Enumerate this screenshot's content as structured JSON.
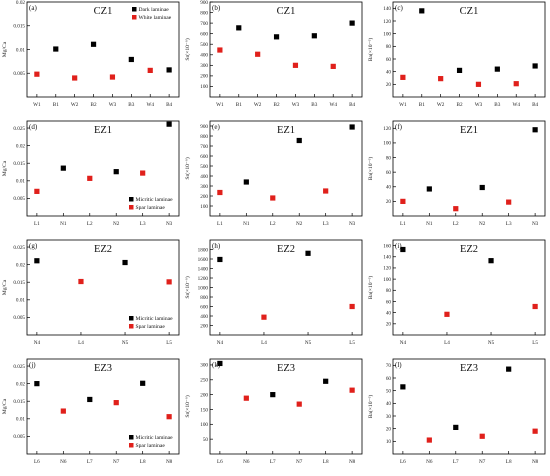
{
  "colors": {
    "black": "#000000",
    "red": "#e0201b",
    "axis": "#000000"
  },
  "legends": {
    "cz": [
      "Dark laminae",
      "White laminae"
    ],
    "ez": [
      "Micritic laminae",
      "Spar laminae"
    ]
  },
  "chart_data": [
    {
      "type": "scatter",
      "letter": "(a)",
      "title": "CZ1",
      "ylabel": "Mg/Ca",
      "categories": [
        "W1",
        "B1",
        "W2",
        "B2",
        "W3",
        "B3",
        "W4",
        "B4"
      ],
      "ylim": [
        0,
        0.02
      ],
      "yticks": [
        0.005,
        0.01,
        0.015,
        0.02
      ],
      "yticklabels": [
        "0.005",
        "0.01",
        "0.015",
        "0.02"
      ],
      "legend": "cz",
      "series": [
        {
          "name": "Dark laminae",
          "color": "black",
          "points": [
            [
              1,
              0.0101
            ],
            [
              3,
              0.0111
            ],
            [
              5,
              0.0079
            ],
            [
              7,
              0.0057
            ]
          ]
        },
        {
          "name": "White laminae",
          "color": "red",
          "points": [
            [
              0,
              0.0048
            ],
            [
              2,
              0.004
            ],
            [
              4,
              0.0042
            ],
            [
              6,
              0.0056
            ]
          ]
        }
      ]
    },
    {
      "type": "scatter",
      "letter": "(b)",
      "title": "CZ1",
      "ylabel": "Sr(×10⁻⁶)",
      "categories": [
        "W1",
        "B1",
        "W2",
        "B2",
        "W3",
        "B3",
        "W4",
        "B4"
      ],
      "ylim": [
        0,
        900
      ],
      "yticks": [
        100,
        200,
        300,
        400,
        500,
        600,
        700,
        800,
        900
      ],
      "yticklabels": [
        "100",
        "200",
        "300",
        "400",
        "500",
        "600",
        "700",
        "800",
        "900"
      ],
      "legend": null,
      "series": [
        {
          "name": "",
          "color": "black",
          "points": [
            [
              1,
              655
            ],
            [
              3,
              570
            ],
            [
              5,
              580
            ],
            [
              7,
              700
            ]
          ]
        },
        {
          "name": "",
          "color": "red",
          "points": [
            [
              0,
              445
            ],
            [
              2,
              405
            ],
            [
              4,
              300
            ],
            [
              6,
              290
            ]
          ]
        }
      ]
    },
    {
      "type": "scatter",
      "letter": "(c)",
      "title": "CZ1",
      "ylabel": "Ba(×10⁻⁶)",
      "categories": [
        "W1",
        "B1",
        "W2",
        "B2",
        "W3",
        "B3",
        "W4",
        "B4"
      ],
      "ylim": [
        0,
        150
      ],
      "yticks": [
        20,
        40,
        60,
        80,
        100,
        120,
        140
      ],
      "yticklabels": [
        "20",
        "40",
        "60",
        "80",
        "100",
        "120",
        "140"
      ],
      "legend": null,
      "series": [
        {
          "name": "",
          "color": "black",
          "points": [
            [
              1,
              136
            ],
            [
              3,
              42
            ],
            [
              5,
              44
            ],
            [
              7,
              49
            ]
          ]
        },
        {
          "name": "",
          "color": "red",
          "points": [
            [
              0,
              31
            ],
            [
              2,
              29
            ],
            [
              4,
              20
            ],
            [
              6,
              21
            ]
          ]
        }
      ]
    },
    {
      "type": "scatter",
      "letter": "(d)",
      "title": "EZ1",
      "ylabel": "Mg/Ca",
      "categories": [
        "L1",
        "N1",
        "L2",
        "N2",
        "L3",
        "N3"
      ],
      "ylim": [
        0,
        0.027
      ],
      "yticks": [
        0.005,
        0.01,
        0.015,
        0.02,
        0.025
      ],
      "yticklabels": [
        "0.005",
        "0.01",
        "0.015",
        "0.02",
        "0.025"
      ],
      "legend": "ez",
      "series": [
        {
          "name": "Micritic laminae",
          "color": "black",
          "points": [
            [
              1,
              0.0136
            ],
            [
              3,
              0.0126
            ],
            [
              5,
              0.0261
            ]
          ]
        },
        {
          "name": "Spar laminae",
          "color": "red",
          "points": [
            [
              0,
              0.007
            ],
            [
              2,
              0.0107
            ],
            [
              4,
              0.0122
            ]
          ]
        }
      ]
    },
    {
      "type": "scatter",
      "letter": "(e)",
      "title": "EZ1",
      "ylabel": "Sr(×10⁻⁶)",
      "categories": [
        "L1",
        "N1",
        "L2",
        "N2",
        "L3",
        "N3"
      ],
      "ylim": [
        0,
        950
      ],
      "yticks": [
        100,
        200,
        300,
        400,
        500,
        600,
        700,
        800,
        900
      ],
      "yticklabels": [
        "100",
        "200",
        "300",
        "400",
        "500",
        "600",
        "700",
        "800",
        "900"
      ],
      "legend": null,
      "series": [
        {
          "name": "",
          "color": "black",
          "points": [
            [
              1,
              340
            ],
            [
              3,
              755
            ],
            [
              5,
              890
            ]
          ]
        },
        {
          "name": "",
          "color": "red",
          "points": [
            [
              0,
              235
            ],
            [
              2,
              180
            ],
            [
              4,
              250
            ]
          ]
        }
      ]
    },
    {
      "type": "scatter",
      "letter": "(f)",
      "title": "EZ1",
      "ylabel": "Ba(×10⁻⁶)",
      "categories": [
        "L1",
        "N1",
        "L2",
        "N2",
        "L3",
        "N3"
      ],
      "ylim": [
        0,
        130
      ],
      "yticks": [
        20,
        40,
        60,
        80,
        100,
        120
      ],
      "yticklabels": [
        "20",
        "40",
        "60",
        "80",
        "100",
        "120"
      ],
      "legend": null,
      "series": [
        {
          "name": "",
          "color": "black",
          "points": [
            [
              1,
              37
            ],
            [
              3,
              39
            ],
            [
              5,
              118
            ]
          ]
        },
        {
          "name": "",
          "color": "red",
          "points": [
            [
              0,
              20
            ],
            [
              2,
              10
            ],
            [
              4,
              19
            ]
          ]
        }
      ]
    },
    {
      "type": "scatter",
      "letter": "(g)",
      "title": "EZ2",
      "ylabel": "Mg/Ca",
      "categories": [
        "N4",
        "L4",
        "N5",
        "L5"
      ],
      "ylim": [
        0,
        0.027
      ],
      "yticks": [
        0.005,
        0.01,
        0.015,
        0.02,
        0.025
      ],
      "yticklabels": [
        "0.005",
        "0.01",
        "0.015",
        "0.02",
        "0.025"
      ],
      "legend": "ez",
      "series": [
        {
          "name": "Micritic laminae",
          "color": "black",
          "points": [
            [
              0,
              0.0211
            ],
            [
              2,
              0.0206
            ]
          ]
        },
        {
          "name": "Spar laminae",
          "color": "red",
          "points": [
            [
              1,
              0.0152
            ],
            [
              3,
              0.0151
            ]
          ]
        }
      ]
    },
    {
      "type": "scatter",
      "letter": "(h)",
      "title": "EZ2",
      "ylabel": "Sr(×10⁻⁶)",
      "categories": [
        "N4",
        "L4",
        "N5",
        "L5"
      ],
      "ylim": [
        0,
        2000
      ],
      "yticks": [
        200,
        400,
        600,
        800,
        1000,
        1200,
        1400,
        1600,
        1800
      ],
      "yticklabels": [
        "200",
        "400",
        "600",
        "800",
        "1000",
        "1200",
        "1400",
        "1600",
        "1800"
      ],
      "legend": null,
      "series": [
        {
          "name": "",
          "color": "black",
          "points": [
            [
              0,
              1590
            ],
            [
              2,
              1720
            ]
          ]
        },
        {
          "name": "",
          "color": "red",
          "points": [
            [
              1,
              375
            ],
            [
              3,
              600
            ]
          ]
        }
      ]
    },
    {
      "type": "scatter",
      "letter": "(i)",
      "title": "EZ2",
      "ylabel": "Ba(×10⁻⁶)",
      "categories": [
        "N4",
        "L4",
        "N5",
        "L5"
      ],
      "ylim": [
        0,
        170
      ],
      "yticks": [
        20,
        40,
        60,
        80,
        100,
        120,
        140,
        160
      ],
      "yticklabels": [
        "20",
        "40",
        "60",
        "80",
        "100",
        "120",
        "140",
        "160"
      ],
      "legend": null,
      "series": [
        {
          "name": "",
          "color": "black",
          "points": [
            [
              0,
              153
            ],
            [
              2,
              133
            ]
          ]
        },
        {
          "name": "",
          "color": "red",
          "points": [
            [
              1,
              37
            ],
            [
              3,
              51
            ]
          ]
        }
      ]
    },
    {
      "type": "scatter",
      "letter": "(j)",
      "title": "EZ3",
      "ylabel": "Mg/Ca",
      "categories": [
        "L6",
        "N6",
        "L7",
        "N7",
        "L8",
        "N8"
      ],
      "ylim": [
        0,
        0.027
      ],
      "yticks": [
        0.005,
        0.01,
        0.015,
        0.02,
        0.025
      ],
      "yticklabels": [
        "0.005",
        "0.01",
        "0.015",
        "0.02",
        "0.025"
      ],
      "legend": "ez",
      "series": [
        {
          "name": "Micritic laminae",
          "color": "black",
          "points": [
            [
              0,
              0.02
            ],
            [
              2,
              0.0155
            ],
            [
              4,
              0.0201
            ]
          ]
        },
        {
          "name": "Spar laminae",
          "color": "red",
          "points": [
            [
              1,
              0.0122
            ],
            [
              3,
              0.0146
            ],
            [
              5,
              0.0106
            ]
          ]
        }
      ]
    },
    {
      "type": "scatter",
      "letter": "(k)",
      "title": "EZ3",
      "ylabel": "Sr(×10⁻⁶)",
      "categories": [
        "L6",
        "N6",
        "L7",
        "N7",
        "L8",
        "N8"
      ],
      "ylim": [
        0,
        320
      ],
      "yticks": [
        50,
        100,
        150,
        200,
        250,
        300
      ],
      "yticklabels": [
        "50",
        "100",
        "150",
        "200",
        "250",
        "300"
      ],
      "legend": null,
      "series": [
        {
          "name": "",
          "color": "black",
          "points": [
            [
              0,
              305
            ],
            [
              2,
              200
            ],
            [
              4,
              245
            ]
          ]
        },
        {
          "name": "",
          "color": "red",
          "points": [
            [
              1,
              188
            ],
            [
              3,
              168
            ],
            [
              5,
              215
            ]
          ]
        }
      ]
    },
    {
      "type": "scatter",
      "letter": "(l)",
      "title": "EZ3",
      "ylabel": "Ba(×10⁻⁶)",
      "categories": [
        "L6",
        "N6",
        "L7",
        "N7",
        "L8",
        "N8"
      ],
      "ylim": [
        0,
        75
      ],
      "yticks": [
        10,
        20,
        30,
        40,
        50,
        60,
        70
      ],
      "yticklabels": [
        "10",
        "20",
        "30",
        "40",
        "50",
        "60",
        "70"
      ],
      "legend": null,
      "series": [
        {
          "name": "",
          "color": "black",
          "points": [
            [
              0,
              53
            ],
            [
              2,
              21
            ],
            [
              4,
              67
            ]
          ]
        },
        {
          "name": "",
          "color": "red",
          "points": [
            [
              1,
              11
            ],
            [
              3,
              14
            ],
            [
              5,
              18
            ]
          ]
        }
      ]
    }
  ]
}
